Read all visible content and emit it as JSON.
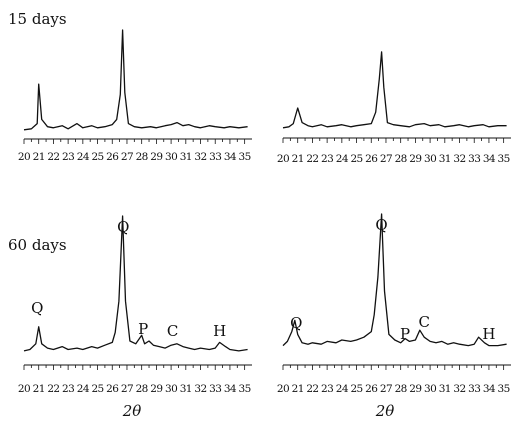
{
  "colors": {
    "trace": "#111111",
    "axis": "#111111",
    "background": "#ffffff"
  },
  "chart_data": [
    {
      "type": "line",
      "title": "15 days",
      "xlabel": "",
      "ylabel": "",
      "xlim": [
        20,
        35.5
      ],
      "ylim": [
        0,
        100
      ],
      "tick_labels": [
        "20",
        "21",
        "22",
        "23",
        "24",
        "25",
        "26",
        "27",
        "28",
        "29",
        "30",
        "31",
        "32",
        "33",
        "34",
        "35"
      ],
      "series": [
        {
          "x": [
            20,
            20.5,
            20.9,
            21,
            21.2,
            21.6,
            22,
            22.6,
            23,
            23.6,
            24,
            24.6,
            25,
            25.5,
            26,
            26.3,
            26.55,
            26.7,
            26.85,
            27.1,
            27.5,
            28,
            28.6,
            29,
            29.6,
            30,
            30.4,
            30.8,
            31.2,
            31.6,
            32,
            32.6,
            33,
            33.6,
            34,
            34.6,
            35.2
          ],
          "y": [
            4,
            5,
            10,
            48,
            14,
            7,
            6,
            8,
            5,
            10,
            6,
            8,
            6,
            7,
            9,
            14,
            38,
            100,
            40,
            10,
            7,
            6,
            7,
            6,
            8,
            9,
            11,
            8,
            9,
            7,
            6,
            8,
            7,
            6,
            7,
            6,
            7
          ]
        }
      ],
      "annotations": [],
      "grid": false
    },
    {
      "type": "line",
      "title": "",
      "xlabel": "",
      "ylabel": "",
      "xlim": [
        20,
        35.5
      ],
      "ylim": [
        0,
        100
      ],
      "tick_labels": [
        "20",
        "21",
        "22",
        "23",
        "24",
        "25",
        "26",
        "27",
        "28",
        "29",
        "30",
        "31",
        "32",
        "33",
        "34",
        "35"
      ],
      "series": [
        {
          "x": [
            20,
            20.4,
            20.7,
            21,
            21.3,
            21.7,
            22,
            22.6,
            23,
            23.6,
            24,
            24.6,
            25,
            25.5,
            26,
            26.3,
            26.55,
            26.7,
            26.85,
            27.1,
            27.5,
            28,
            28.6,
            29,
            29.6,
            30,
            30.6,
            31,
            31.6,
            32,
            32.6,
            33,
            33.6,
            34,
            34.6,
            35.2
          ],
          "y": [
            5,
            6,
            9,
            24,
            10,
            7,
            6,
            8,
            6,
            7,
            8,
            6,
            7,
            8,
            9,
            20,
            52,
            78,
            44,
            10,
            8,
            7,
            6,
            8,
            9,
            7,
            8,
            6,
            7,
            8,
            6,
            7,
            8,
            6,
            7,
            7
          ]
        }
      ],
      "annotations": [],
      "grid": false
    },
    {
      "type": "line",
      "title": "60 days",
      "xlabel": "2θ",
      "ylabel": "",
      "xlim": [
        20,
        35.5
      ],
      "ylim": [
        0,
        100
      ],
      "tick_labels": [
        "20",
        "21",
        "22",
        "23",
        "24",
        "25",
        "26",
        "27",
        "28",
        "29",
        "30",
        "31",
        "32",
        "33",
        "34",
        "35"
      ],
      "series": [
        {
          "x": [
            20,
            20.4,
            20.8,
            21,
            21.2,
            21.6,
            22,
            22.6,
            23,
            23.6,
            24,
            24.6,
            25,
            25.5,
            26,
            26.2,
            26.45,
            26.7,
            26.9,
            27.2,
            27.6,
            28,
            28.2,
            28.5,
            28.8,
            29.2,
            29.6,
            30,
            30.4,
            30.8,
            31.2,
            31.6,
            32,
            32.6,
            33,
            33.3,
            33.7,
            34,
            34.6,
            35.2
          ],
          "y": [
            5,
            6,
            10,
            22,
            10,
            7,
            6,
            8,
            6,
            7,
            6,
            8,
            7,
            9,
            11,
            18,
            40,
            100,
            40,
            12,
            10,
            16,
            10,
            12,
            9,
            8,
            7,
            9,
            10,
            8,
            7,
            6,
            7,
            6,
            7,
            11,
            8,
            6,
            5,
            6
          ]
        }
      ],
      "annotations": [
        "Q",
        "Q",
        "P",
        "C",
        "H"
      ],
      "grid": false
    },
    {
      "type": "line",
      "title": "",
      "xlabel": "2θ",
      "ylabel": "",
      "xlim": [
        20,
        35.5
      ],
      "ylim": [
        0,
        100
      ],
      "tick_labels": [
        "20",
        "21",
        "22",
        "23",
        "24",
        "25",
        "26",
        "27",
        "28",
        "29",
        "30",
        "31",
        "32",
        "33",
        "34",
        "35"
      ],
      "series": [
        {
          "x": [
            20,
            20.3,
            20.6,
            20.8,
            21,
            21.3,
            21.7,
            22,
            22.6,
            23,
            23.6,
            24,
            24.6,
            25,
            25.5,
            26,
            26.2,
            26.45,
            26.7,
            26.9,
            27.2,
            27.6,
            28,
            28.3,
            28.6,
            29,
            29.3,
            29.6,
            30,
            30.4,
            30.8,
            31.2,
            31.6,
            32,
            32.6,
            33,
            33.3,
            33.7,
            34,
            34.6,
            35.2
          ],
          "y": [
            6,
            9,
            16,
            24,
            14,
            8,
            7,
            8,
            7,
            9,
            8,
            10,
            9,
            10,
            12,
            16,
            28,
            55,
            100,
            45,
            14,
            10,
            8,
            11,
            9,
            10,
            17,
            12,
            9,
            8,
            9,
            7,
            8,
            7,
            6,
            7,
            12,
            8,
            6,
            6,
            7
          ]
        }
      ],
      "annotations": [
        "Q",
        "Q",
        "P",
        "C",
        "H"
      ],
      "grid": false
    }
  ]
}
